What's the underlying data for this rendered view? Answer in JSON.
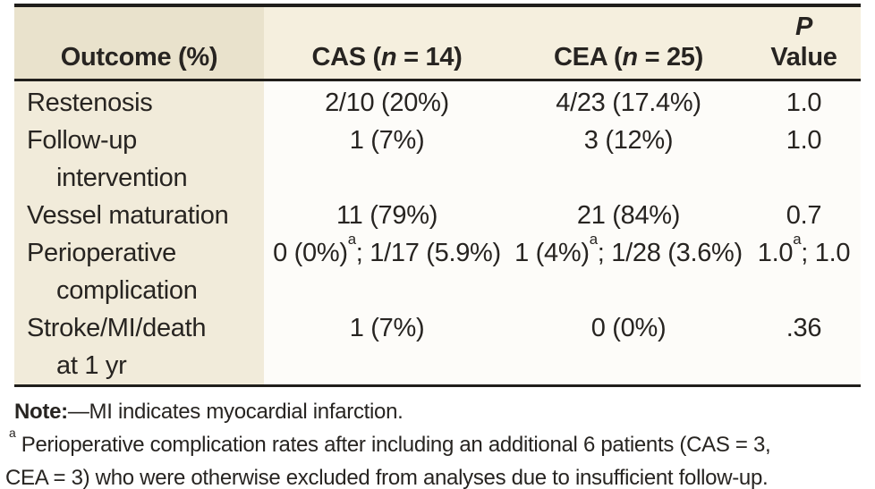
{
  "colors": {
    "border": "#201e1b",
    "text": "#272421",
    "header_left_bg": "#e9e2cc",
    "header_bg": "#f5efde",
    "col1_bg": "#f1ebda",
    "body_bg": "#fdfcf9",
    "page_bg": "#ffffff"
  },
  "table": {
    "header": {
      "outcome_label": "Outcome (%)",
      "cas": {
        "prefix": "CAS (",
        "n": "n",
        "suffix": " = 14)"
      },
      "cea": {
        "prefix": "CEA (",
        "n": "n",
        "suffix": " = 25)"
      },
      "p": {
        "line1": "P",
        "line2": "Value"
      }
    },
    "rows": [
      {
        "outcome": "Restenosis",
        "cas": "2/10 (20%)",
        "cea": "4/23 (17.4%)",
        "p": "1.0"
      },
      {
        "outcome": "Follow-up",
        "outcome2": "intervention",
        "cas": "1 (7%)",
        "cea": "3 (12%)",
        "p": "1.0"
      },
      {
        "outcome": "Vessel maturation",
        "cas": "11 (79%)",
        "cea": "21 (84%)",
        "p": "0.7"
      },
      {
        "outcome": "Perioperative",
        "outcome2": "complication",
        "cas_pre": "0 (0%)",
        "cas_sup": "a",
        "cas_post": "; 1/17 (5.9%)",
        "cea_pre": "1 (4%)",
        "cea_sup": "a",
        "cea_post": "; 1/28 (3.6%)",
        "p_pre": "1.0",
        "p_sup": "a",
        "p_post": "; 1.0"
      },
      {
        "outcome": "Stroke/MI/death",
        "outcome2": "at 1 yr",
        "cas": "1 (7%)",
        "cea": "0 (0%)",
        "p": ".36"
      }
    ]
  },
  "notes": {
    "note_label": "Note:",
    "note_text": "—MI indicates myocardial infarction.",
    "footnote_marker": "a",
    "footnote_line1": " Perioperative complication rates after including an additional 6 patients (CAS = 3,",
    "footnote_line2": "CEA = 3) who were otherwise excluded from analyses due to insufficient follow-up."
  }
}
